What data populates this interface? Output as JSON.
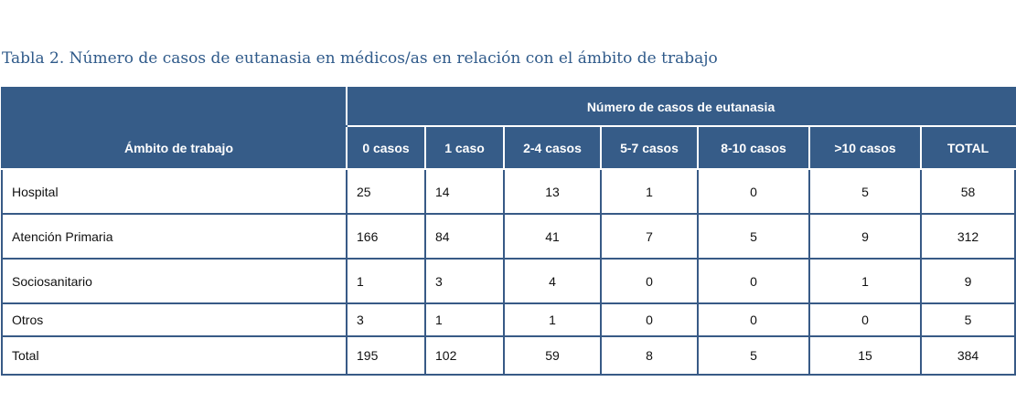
{
  "caption": {
    "label": "Tabla 2.",
    "text": "Número de casos de eutanasia en médicos/as en relación con el ámbito de trabajo"
  },
  "header": {
    "group": "Número de casos de eutanasia",
    "row_label": "Ámbito de trabajo",
    "columns": [
      "0 casos",
      "1 caso",
      "2-4 casos",
      "5-7 casos",
      "8-10 casos",
      ">10 casos",
      "TOTAL"
    ]
  },
  "rows": [
    {
      "name": "Hospital",
      "values": [
        "25",
        "14",
        "13",
        "1",
        "0",
        "5",
        "58"
      ]
    },
    {
      "name": "Atención Primaria",
      "values": [
        "166",
        "84",
        "41",
        "7",
        "5",
        "9",
        "312"
      ]
    },
    {
      "name": "Sociosanitario",
      "values": [
        "1",
        "3",
        "4",
        "0",
        "0",
        "1",
        "9"
      ]
    },
    {
      "name": "Otros",
      "values": [
        "3",
        "1",
        "1",
        "0",
        "0",
        "0",
        "5"
      ]
    },
    {
      "name": "Total",
      "values": [
        "195",
        "102",
        "59",
        "8",
        "5",
        "15",
        "384"
      ]
    }
  ],
  "colors": {
    "header_bg": "#365c88",
    "border": "#385a86",
    "caption": "#2f5a8a"
  }
}
